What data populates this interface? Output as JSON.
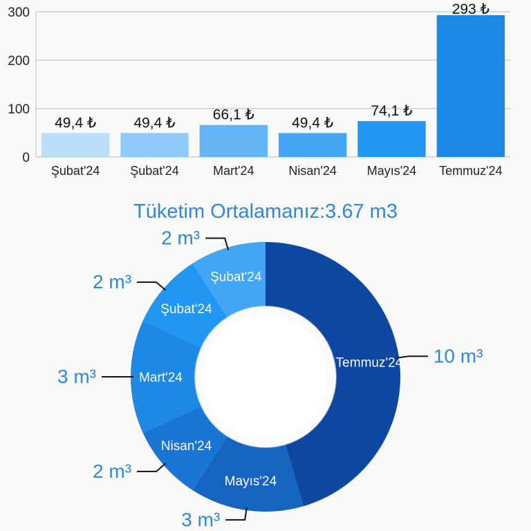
{
  "chart_data": [
    {
      "type": "bar",
      "categories": [
        "Şubat'24",
        "Şubat'24",
        "Mart'24",
        "Nisan'24",
        "Mayıs'24",
        "Temmuz'24"
      ],
      "values": [
        49.4,
        49.4,
        66.1,
        49.4,
        74.1,
        293
      ],
      "data_labels": [
        "49,4 ₺",
        "49,4 ₺",
        "66,1 ₺",
        "49,4 ₺",
        "74,1 ₺",
        "293 ₺"
      ],
      "ylim": [
        0,
        300
      ],
      "yticks": [
        "0",
        "100",
        "200",
        "300"
      ],
      "grid": true,
      "colors": [
        "#bbdefb",
        "#90caf9",
        "#64b5f6",
        "#42a5f5",
        "#2196f3",
        "#1e88e5"
      ]
    },
    {
      "type": "pie",
      "title": "Tüketim Ortalamanız:3.67 m3",
      "categories": [
        "Temmuz'24",
        "Mayıs'24",
        "Nisan'24",
        "Mart'24",
        "Şubat'24",
        "Şubat'24"
      ],
      "values": [
        10,
        3,
        2,
        3,
        2,
        2
      ],
      "data_labels": [
        "10 m³",
        "3 m³",
        "2 m³",
        "3 m³",
        "2 m³",
        "2 m³"
      ],
      "donut": true,
      "colors": [
        "#0d47a1",
        "#1565c0",
        "#1976d2",
        "#1e88e5",
        "#2196f3",
        "#42a5f5"
      ]
    }
  ]
}
